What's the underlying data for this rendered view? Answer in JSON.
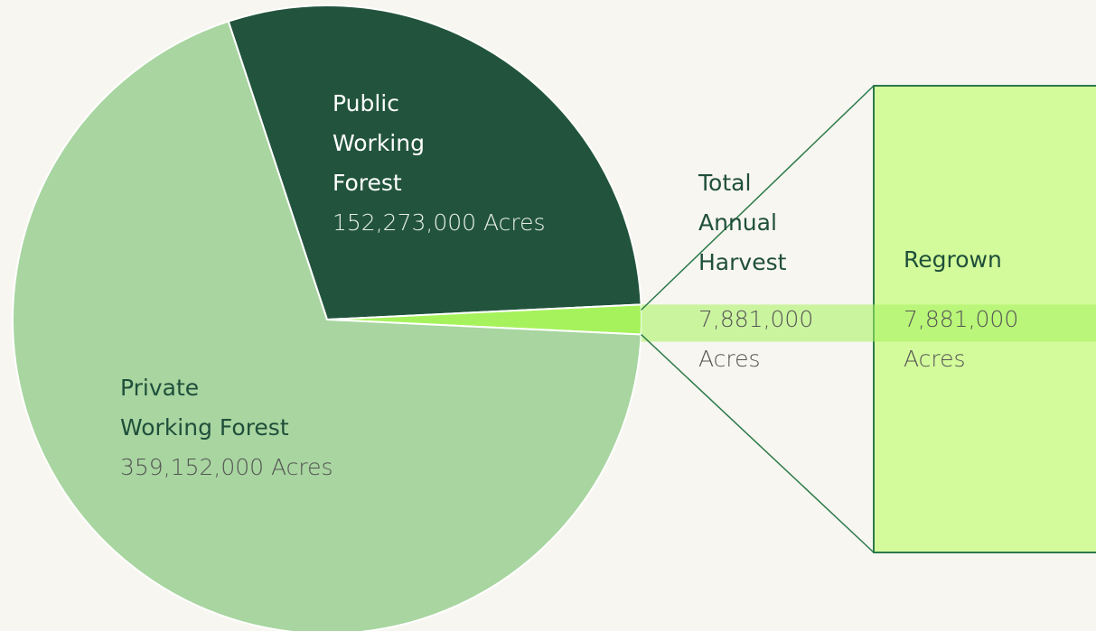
{
  "chart_data": {
    "type": "pie",
    "categories": [
      "Public\nWorking\nForest",
      "Total\nAnnual\nHarvest",
      "Private\nWorking Forest"
    ],
    "values": [
      152273000,
      7881000,
      359152000
    ],
    "value_labels": [
      "152,273,000 Acres",
      "7,881,000\nAcres",
      "359,152,000 Acres"
    ],
    "colors": [
      "#22543d",
      "#a6f25c",
      "#a8d5a0"
    ],
    "breakdown": {
      "label": "Regrown",
      "value": 7881000,
      "value_label": "7,881,000\nAcres",
      "color": "#d3fb9b"
    }
  }
}
